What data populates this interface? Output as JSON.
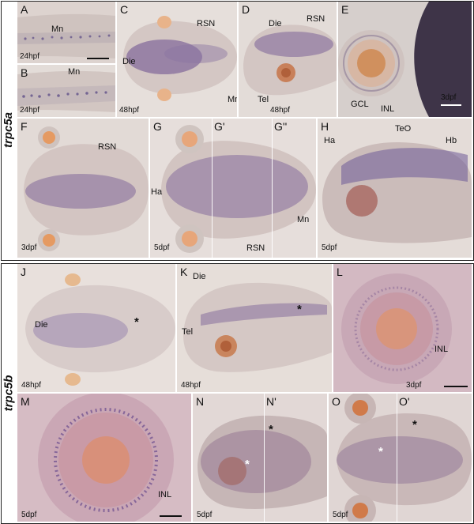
{
  "figure": {
    "row1_gene": "trpc5a",
    "row2_gene": "trpc5b",
    "colors": {
      "background": "#ffffff",
      "tissue": "#d9cdc7",
      "stain": "#5a4a86",
      "eye": "#d0804a",
      "scale_dark": "#111111",
      "scale_light": "#ffffff"
    }
  },
  "panels": {
    "A": {
      "letter": "A",
      "stage": "24hpf",
      "labels": [
        "Mn"
      ]
    },
    "B": {
      "letter": "B",
      "stage": "24hpf",
      "labels": [
        "Mn"
      ]
    },
    "C": {
      "letter": "C",
      "stage": "48hpf",
      "labels": [
        "RSN",
        "Die",
        "Mn"
      ]
    },
    "D": {
      "letter": "D",
      "stage": "48hpf",
      "labels": [
        "Die",
        "RSN",
        "Tel"
      ]
    },
    "E": {
      "letter": "E",
      "stage": "3dpf",
      "labels": [
        "GCL",
        "INL"
      ]
    },
    "F": {
      "letter": "F",
      "stage": "3dpf",
      "labels": [
        "RSN"
      ]
    },
    "G": {
      "letter": "G",
      "letter2": "G'",
      "letter3": "G''",
      "stage": "5dpf",
      "labels": [
        "Ha",
        "RSN",
        "Mn"
      ]
    },
    "H": {
      "letter": "H",
      "stage": "5dpf",
      "labels": [
        "Ha",
        "TeO",
        "Hb"
      ]
    },
    "J": {
      "letter": "J",
      "stage": "48hpf",
      "labels": [
        "Die"
      ],
      "marker": "*"
    },
    "K": {
      "letter": "K",
      "stage": "48hpf",
      "labels": [
        "Die",
        "Tel"
      ],
      "marker": "*"
    },
    "L": {
      "letter": "L",
      "stage": "3dpf",
      "labels": [
        "INL"
      ]
    },
    "M": {
      "letter": "M",
      "stage": "5dpf",
      "labels": [
        "INL"
      ]
    },
    "N": {
      "letter": "N",
      "letter2": "N'",
      "stage": "5dpf",
      "marker": "*"
    },
    "O": {
      "letter": "O",
      "letter2": "O'",
      "stage": "5dpf",
      "marker": "*"
    }
  }
}
